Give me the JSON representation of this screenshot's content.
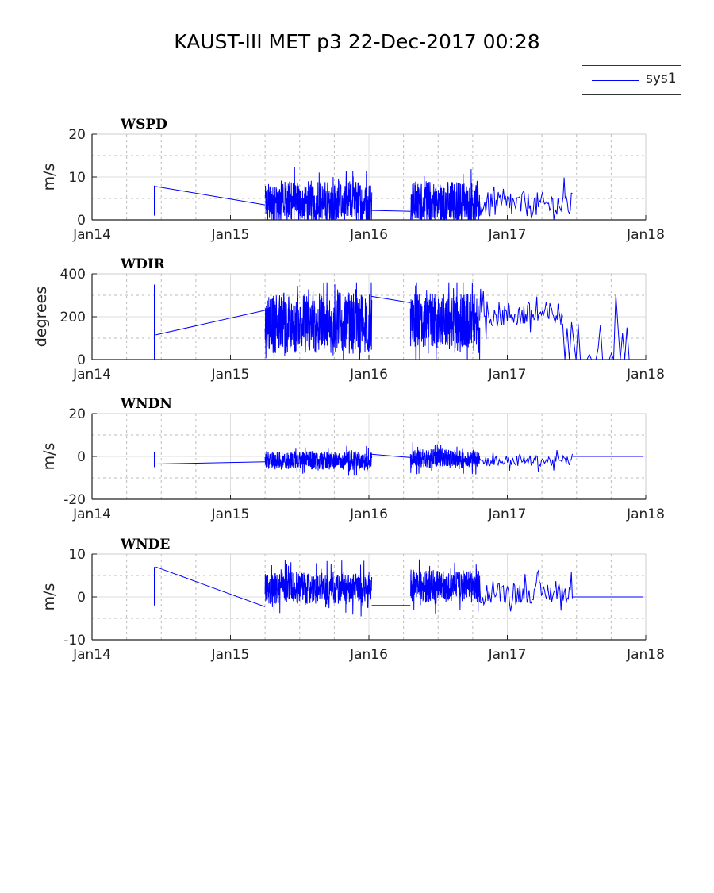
{
  "title": "KAUST-III MET p3 22-Dec-2017 00:28",
  "legend": {
    "label": "sys1",
    "color": "#0000ff"
  },
  "chart_data": [
    {
      "type": "line",
      "title": "WSPD",
      "ylabel": "m/s",
      "ylim": [
        0,
        20
      ],
      "yticks": [
        0,
        10,
        20
      ],
      "xlim": [
        2014,
        2018
      ],
      "xticks": [
        "Jan14",
        "Jan15",
        "Jan16",
        "Jan17",
        "Jan18"
      ],
      "grid": true,
      "segments": [
        {
          "kind": "spike",
          "t": 2014.45,
          "min": 1,
          "max": 8
        },
        {
          "kind": "line",
          "points": [
            [
              2014.46,
              7.8
            ],
            [
              2015.25,
              3.5
            ]
          ]
        },
        {
          "kind": "noise",
          "t0": 2015.25,
          "t1": 2016.02,
          "mean": 4,
          "min": 0,
          "max": 14,
          "n": 260,
          "amp": 4
        },
        {
          "kind": "line",
          "points": [
            [
              2016.02,
              2.2
            ],
            [
              2016.3,
              2.0
            ]
          ]
        },
        {
          "kind": "noise",
          "t0": 2016.3,
          "t1": 2016.8,
          "mean": 4,
          "min": 0,
          "max": 14,
          "n": 180,
          "amp": 4
        },
        {
          "kind": "noise",
          "t0": 2016.8,
          "t1": 2017.47,
          "mean": 3.5,
          "min": 0,
          "max": 11,
          "n": 90,
          "amp": 3
        }
      ]
    },
    {
      "type": "line",
      "title": "WDIR",
      "ylabel": "degrees",
      "ylim": [
        0,
        400
      ],
      "yticks": [
        0,
        200,
        400
      ],
      "xlim": [
        2014,
        2018
      ],
      "xticks": [
        "Jan14",
        "Jan15",
        "Jan16",
        "Jan17",
        "Jan18"
      ],
      "grid": true,
      "segments": [
        {
          "kind": "spike",
          "t": 2014.45,
          "min": 0,
          "max": 350
        },
        {
          "kind": "line",
          "points": [
            [
              2014.46,
              115
            ],
            [
              2015.25,
              230
            ]
          ]
        },
        {
          "kind": "noise",
          "t0": 2015.25,
          "t1": 2016.02,
          "mean": 170,
          "min": 0,
          "max": 360,
          "n": 260,
          "amp": 110
        },
        {
          "kind": "line",
          "points": [
            [
              2016.02,
              295
            ],
            [
              2016.3,
              265
            ]
          ]
        },
        {
          "kind": "noise",
          "t0": 2016.3,
          "t1": 2016.8,
          "mean": 170,
          "min": 0,
          "max": 360,
          "n": 180,
          "amp": 110
        },
        {
          "kind": "noise",
          "t0": 2016.8,
          "t1": 2017.4,
          "mean": 210,
          "min": 0,
          "max": 330,
          "n": 90,
          "amp": 60
        },
        {
          "kind": "noise",
          "t0": 2017.4,
          "t1": 2017.88,
          "mean": 40,
          "min": 0,
          "max": 330,
          "n": 30,
          "amp": 150
        },
        {
          "kind": "line",
          "points": [
            [
              2017.88,
              0
            ],
            [
              2018.0,
              0
            ]
          ]
        }
      ]
    },
    {
      "type": "line",
      "title": "WNDN",
      "ylabel": "m/s",
      "ylim": [
        -20,
        20
      ],
      "yticks": [
        -20,
        0,
        20
      ],
      "xlim": [
        2014,
        2018
      ],
      "xticks": [
        "Jan14",
        "Jan15",
        "Jan16",
        "Jan17",
        "Jan18"
      ],
      "grid": true,
      "segments": [
        {
          "kind": "spike",
          "t": 2014.45,
          "min": -5,
          "max": 2
        },
        {
          "kind": "line",
          "points": [
            [
              2014.46,
              -3.5
            ],
            [
              2015.25,
              -2.5
            ]
          ]
        },
        {
          "kind": "noise",
          "t0": 2015.25,
          "t1": 2016.02,
          "mean": -2,
          "min": -11,
          "max": 8,
          "n": 260,
          "amp": 3.5
        },
        {
          "kind": "line",
          "points": [
            [
              2016.02,
              1
            ],
            [
              2016.3,
              -0.5
            ]
          ]
        },
        {
          "kind": "noise",
          "t0": 2016.3,
          "t1": 2016.8,
          "mean": -1,
          "min": -10,
          "max": 10,
          "n": 180,
          "amp": 3.5
        },
        {
          "kind": "noise",
          "t0": 2016.8,
          "t1": 2017.47,
          "mean": -2,
          "min": -9,
          "max": 3,
          "n": 90,
          "amp": 2.5
        },
        {
          "kind": "line",
          "points": [
            [
              2017.47,
              0
            ],
            [
              2017.98,
              0
            ]
          ]
        }
      ]
    },
    {
      "type": "line",
      "title": "WNDE",
      "ylabel": "m/s",
      "ylim": [
        -10,
        10
      ],
      "yticks": [
        -10,
        0,
        10
      ],
      "xlim": [
        2014,
        2018
      ],
      "xticks": [
        "Jan14",
        "Jan15",
        "Jan16",
        "Jan17",
        "Jan18"
      ],
      "grid": true,
      "segments": [
        {
          "kind": "spike",
          "t": 2014.45,
          "min": -2,
          "max": 7
        },
        {
          "kind": "line",
          "points": [
            [
              2014.46,
              7
            ],
            [
              2015.25,
              -2.3
            ]
          ]
        },
        {
          "kind": "noise",
          "t0": 2015.25,
          "t1": 2016.02,
          "mean": 2,
          "min": -10,
          "max": 9.5,
          "n": 260,
          "amp": 3
        },
        {
          "kind": "line",
          "points": [
            [
              2016.02,
              -2
            ],
            [
              2016.3,
              -2
            ]
          ]
        },
        {
          "kind": "noise",
          "t0": 2016.3,
          "t1": 2016.8,
          "mean": 2.5,
          "min": -10,
          "max": 10,
          "n": 180,
          "amp": 3
        },
        {
          "kind": "noise",
          "t0": 2016.8,
          "t1": 2017.47,
          "mean": 1,
          "min": -4,
          "max": 8,
          "n": 90,
          "amp": 2.5
        },
        {
          "kind": "line",
          "points": [
            [
              2017.47,
              0
            ],
            [
              2017.98,
              0
            ]
          ]
        }
      ]
    }
  ]
}
